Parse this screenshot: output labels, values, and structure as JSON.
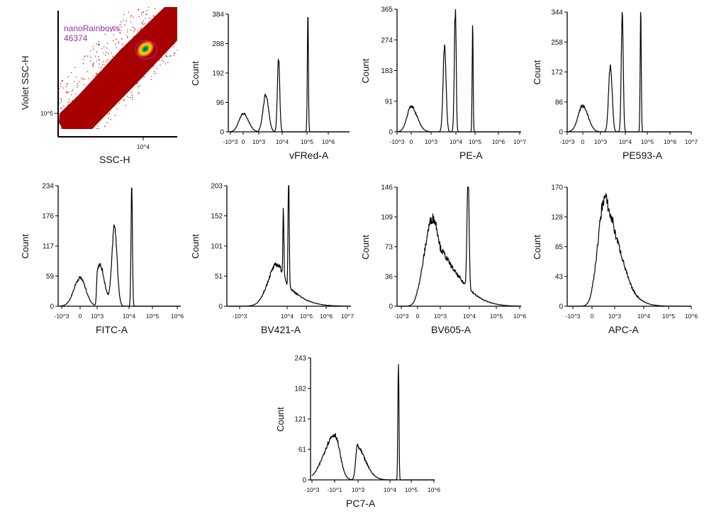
{
  "chart_data": [
    {
      "type": "scatter",
      "xlabel": "SSC-H",
      "ylabel": "Violet SSC-H",
      "x_ticks": [
        "10^4"
      ],
      "y_ticks": [
        "10^5"
      ],
      "scale": "log",
      "gate": {
        "name": "nanoRainbows",
        "count": "46374",
        "color": "#9b2fb0"
      },
      "colors": {
        "density_low": "#b00000",
        "density_high": "#1a2fd0"
      }
    },
    {
      "type": "histogram",
      "xlabel": "vFRed-A",
      "ylabel": "Count",
      "y_ticks": [
        "0",
        "96",
        "192",
        "288",
        "384"
      ],
      "ylim": [
        0,
        384
      ],
      "x_ticks": [
        "-10^3",
        "0",
        "10^3",
        "10^4",
        "10^5",
        "10^6"
      ],
      "x_tick_values": [
        -1000,
        0,
        1000,
        10000,
        100000,
        1000000
      ],
      "peaks": [
        {
          "x": 0,
          "count": 60,
          "spread": 1.0
        },
        {
          "x": 2000,
          "count": 120,
          "spread": 0.12
        },
        {
          "x": 7000,
          "count": 235,
          "spread": 0.05
        },
        {
          "x": 110000,
          "count": 384,
          "spread": 0.025
        }
      ]
    },
    {
      "type": "histogram",
      "xlabel": "PE-A",
      "ylabel": "Count",
      "y_ticks": [
        "0",
        "91",
        "183",
        "274",
        "365"
      ],
      "ylim": [
        0,
        365
      ],
      "x_ticks": [
        "-10^3",
        "0",
        "10^3",
        "10^4",
        "10^5",
        "10^6",
        "10^7"
      ],
      "x_tick_values": [
        -1000,
        0,
        1000,
        10000,
        100000,
        1000000,
        10000000
      ],
      "peaks": [
        {
          "x": 0,
          "count": 75,
          "spread": 0.9
        },
        {
          "x": 3500,
          "count": 250,
          "spread": 0.06
        },
        {
          "x": 9500,
          "count": 365,
          "spread": 0.04
        },
        {
          "x": 75000,
          "count": 320,
          "spread": 0.025
        }
      ]
    },
    {
      "type": "histogram",
      "xlabel": "PE593-A",
      "ylabel": "Count",
      "y_ticks": [
        "0",
        "86",
        "172",
        "258",
        "344"
      ],
      "ylim": [
        0,
        344
      ],
      "x_ticks": [
        "-10^3",
        "0",
        "10^3",
        "10^4",
        "10^5",
        "10^6",
        "10^7"
      ],
      "x_tick_values": [
        -1000,
        0,
        1000,
        10000,
        100000,
        1000000,
        10000000
      ],
      "peaks": [
        {
          "x": 0,
          "count": 75,
          "spread": 0.9
        },
        {
          "x": 2500,
          "count": 195,
          "spread": 0.07
        },
        {
          "x": 7500,
          "count": 344,
          "spread": 0.04
        },
        {
          "x": 50000,
          "count": 344,
          "spread": 0.025
        }
      ]
    },
    {
      "type": "histogram",
      "xlabel": "FITC-A",
      "ylabel": "Count",
      "y_ticks": [
        "0",
        "59",
        "117",
        "176",
        "234"
      ],
      "ylim": [
        0,
        234
      ],
      "x_ticks": [
        "-10^3",
        "0",
        "10^3",
        "10^4",
        "10^5",
        "10^6"
      ],
      "x_tick_values": [
        -1000,
        0,
        1000,
        10000,
        100000,
        1000000
      ],
      "peaks": [
        {
          "x": 0,
          "count": 55,
          "spread": 1.0
        },
        {
          "x": 1200,
          "count": 80,
          "spread": 0.15
        },
        {
          "x": 3500,
          "count": 155,
          "spread": 0.08
        },
        {
          "x": 13000,
          "count": 234,
          "spread": 0.03
        }
      ]
    },
    {
      "type": "histogram",
      "xlabel": "BV421-A",
      "ylabel": "Count",
      "y_ticks": [
        "0",
        "51",
        "101",
        "152",
        "203"
      ],
      "ylim": [
        0,
        203
      ],
      "x_ticks": [
        "-10^3",
        "10^4",
        "10^5",
        "10^6",
        "10^7"
      ],
      "x_tick_values": [
        -1000,
        10000,
        100000,
        1000000,
        10000000
      ],
      "peaks": [
        {
          "x": 300,
          "count": 70,
          "spread": 1.3
        },
        {
          "x": 2800,
          "count": 115,
          "spread": 0.07
        },
        {
          "x": 12000,
          "count": 203,
          "spread": 0.03
        }
      ]
    },
    {
      "type": "histogram",
      "xlabel": "BV605-A",
      "ylabel": "Count",
      "y_ticks": [
        "0",
        "36",
        "73",
        "109",
        "146"
      ],
      "ylim": [
        0,
        146
      ],
      "x_ticks": [
        "-10^3",
        "0",
        "10^3",
        "10^4",
        "10^5",
        "10^6"
      ],
      "x_tick_values": [
        -1000,
        0,
        1000,
        10000,
        100000,
        1000000
      ],
      "peaks": [
        {
          "x": 100,
          "count": 108,
          "spread": 1.1
        },
        {
          "x": 9000,
          "count": 146,
          "spread": 0.035
        }
      ]
    },
    {
      "type": "histogram",
      "xlabel": "APC-A",
      "ylabel": "Count",
      "y_ticks": [
        "0",
        "43",
        "85",
        "128",
        "170"
      ],
      "ylim": [
        0,
        170
      ],
      "x_ticks": [
        "-10^3",
        "0",
        "10^3",
        "10^4",
        "10^5",
        "10^6"
      ],
      "x_tick_values": [
        -1000,
        0,
        1000,
        10000,
        100000,
        1000000
      ],
      "peaks": [
        {
          "x": 50,
          "count": 155,
          "spread": 0.9
        },
        {
          "x": 900,
          "count": 50,
          "spread": 0.35
        }
      ]
    },
    {
      "type": "histogram",
      "xlabel": "PC7-A",
      "ylabel": "Count",
      "y_ticks": [
        "0",
        "61",
        "121",
        "182",
        "243"
      ],
      "ylim": [
        0,
        243
      ],
      "x_ticks": [
        "-10^3",
        "-10^1",
        "10^3",
        "10^4",
        "10^5",
        "10^6"
      ],
      "x_tick_values": [
        -1000,
        -10,
        1000,
        10000,
        100000,
        1000000
      ],
      "peaks": [
        {
          "x": -10,
          "count": 90,
          "spread": 0.9
        },
        {
          "x": 800,
          "count": 70,
          "spread": 0.3
        },
        {
          "x": 25000,
          "count": 243,
          "spread": 0.025
        }
      ]
    }
  ]
}
